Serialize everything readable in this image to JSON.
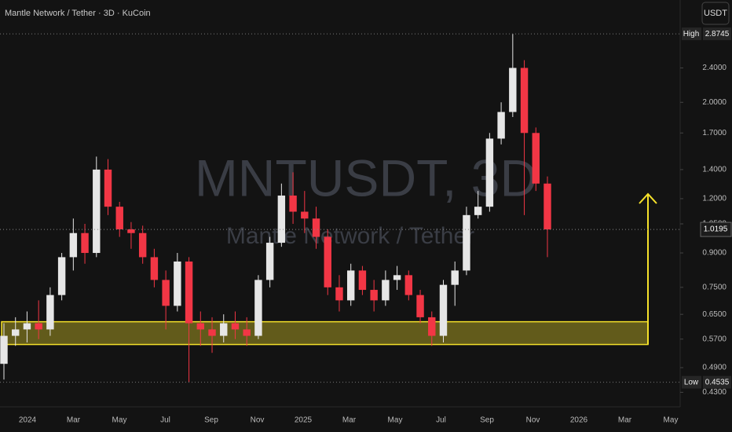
{
  "chart_data": {
    "type": "candlestick",
    "title": "Mantle Network / Tether · 3D · KuCoin",
    "watermark": "MNTUSDT, 3D",
    "watermark_subtitle": "Mantle Network / Tether",
    "currency": "USDT",
    "log_scale": true,
    "grid": false,
    "up_color": "#e6e6e6",
    "down_color": "#f23645",
    "zone_color": "#f5e12a",
    "categories": [
      "2024",
      "Mar",
      "May",
      "Jul",
      "Sep",
      "Nov",
      "2025",
      "Mar",
      "May",
      "Jul",
      "Sep",
      "Nov",
      "2026",
      "Mar",
      "May"
    ],
    "ylim": [
      0.398,
      3.44
    ],
    "yticks": [
      {
        "value": 2.4,
        "label": "2.4000"
      },
      {
        "value": 2.0,
        "label": "2.0000"
      },
      {
        "value": 1.7,
        "label": "1.7000"
      },
      {
        "value": 1.4,
        "label": "1.4000"
      },
      {
        "value": 1.2,
        "label": "1.2000"
      },
      {
        "value": 1.05,
        "label": "1.0500"
      },
      {
        "value": 0.9,
        "label": "0.9000"
      },
      {
        "value": 0.75,
        "label": "0.7500"
      },
      {
        "value": 0.65,
        "label": "0.6500"
      },
      {
        "value": 0.57,
        "label": "0.5700"
      },
      {
        "value": 0.49,
        "label": "0.4900"
      },
      {
        "value": 0.43,
        "label": "0.4300"
      }
    ],
    "high_marker": {
      "label": "High",
      "value": 2.8745
    },
    "low_marker": {
      "label": "Low",
      "value": 0.4535
    },
    "zone": [
      0.554,
      0.625
    ],
    "target": 1.23,
    "open": [
      0.5,
      0.58,
      0.6,
      0.62,
      0.6,
      0.72,
      0.88,
      1.0,
      0.9,
      1.4,
      1.15,
      1.02,
      1.0,
      0.88,
      0.78,
      0.68,
      0.86,
      0.62,
      0.6,
      0.58,
      0.62,
      0.6,
      0.58,
      0.78,
      0.95,
      1.22,
      1.12,
      1.08,
      0.98,
      0.75,
      0.7,
      0.82,
      0.74,
      0.7,
      0.78,
      0.8,
      0.72,
      0.64,
      0.58,
      0.76,
      0.82,
      1.1,
      1.15,
      1.65,
      1.9,
      2.4,
      1.7,
      1.3
    ],
    "high": [
      0.62,
      0.64,
      0.66,
      0.7,
      0.75,
      0.9,
      1.08,
      1.05,
      1.5,
      1.48,
      1.18,
      1.06,
      1.04,
      0.92,
      0.82,
      0.9,
      0.88,
      0.66,
      0.64,
      0.65,
      0.66,
      0.64,
      0.8,
      0.98,
      1.3,
      1.38,
      1.25,
      1.15,
      1.02,
      0.8,
      0.85,
      0.84,
      0.78,
      0.82,
      0.84,
      0.82,
      0.74,
      0.66,
      0.78,
      0.86,
      1.15,
      1.25,
      1.7,
      2.0,
      2.8745,
      2.5,
      1.75,
      1.35
    ],
    "low": [
      0.46,
      0.55,
      0.56,
      0.57,
      0.58,
      0.7,
      0.82,
      0.85,
      0.88,
      1.1,
      0.98,
      0.92,
      0.85,
      0.75,
      0.6,
      0.66,
      0.4535,
      0.55,
      0.53,
      0.56,
      0.57,
      0.55,
      0.57,
      0.75,
      0.93,
      1.05,
      1.0,
      0.92,
      0.72,
      0.66,
      0.68,
      0.72,
      0.66,
      0.68,
      0.74,
      0.7,
      0.62,
      0.55,
      0.56,
      0.68,
      0.8,
      1.08,
      1.12,
      1.6,
      1.85,
      1.1,
      1.25,
      0.88
    ],
    "close": [
      0.58,
      0.6,
      0.62,
      0.6,
      0.72,
      0.88,
      1.0,
      0.9,
      1.4,
      1.15,
      1.02,
      1.0,
      0.88,
      0.78,
      0.68,
      0.86,
      0.62,
      0.6,
      0.58,
      0.62,
      0.6,
      0.58,
      0.78,
      0.95,
      1.22,
      1.12,
      1.08,
      0.98,
      0.75,
      0.7,
      0.82,
      0.74,
      0.7,
      0.78,
      0.8,
      0.72,
      0.64,
      0.58,
      0.76,
      0.82,
      1.1,
      1.15,
      1.65,
      1.9,
      2.4,
      1.7,
      1.3,
      1.0195
    ]
  }
}
